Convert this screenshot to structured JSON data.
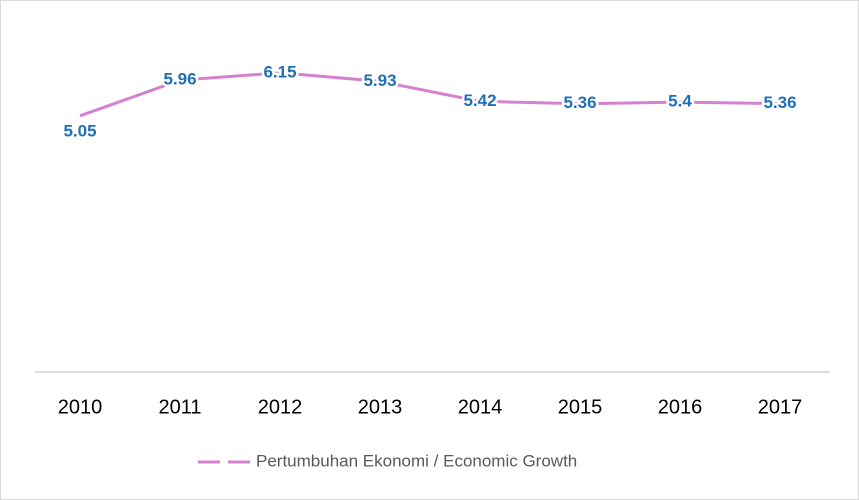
{
  "chart_data": {
    "type": "line",
    "categories": [
      "2010",
      "2011",
      "2012",
      "2013",
      "2014",
      "2015",
      "2016",
      "2017"
    ],
    "series": [
      {
        "name": "Pertumbuhan Ekonomi / Economic Growth",
        "color": "#d580d0",
        "values": [
          5.05,
          5.96,
          6.15,
          5.93,
          5.42,
          5.36,
          5.4,
          5.36
        ]
      }
    ],
    "ylim": [
      -1.5,
      7.5
    ]
  }
}
